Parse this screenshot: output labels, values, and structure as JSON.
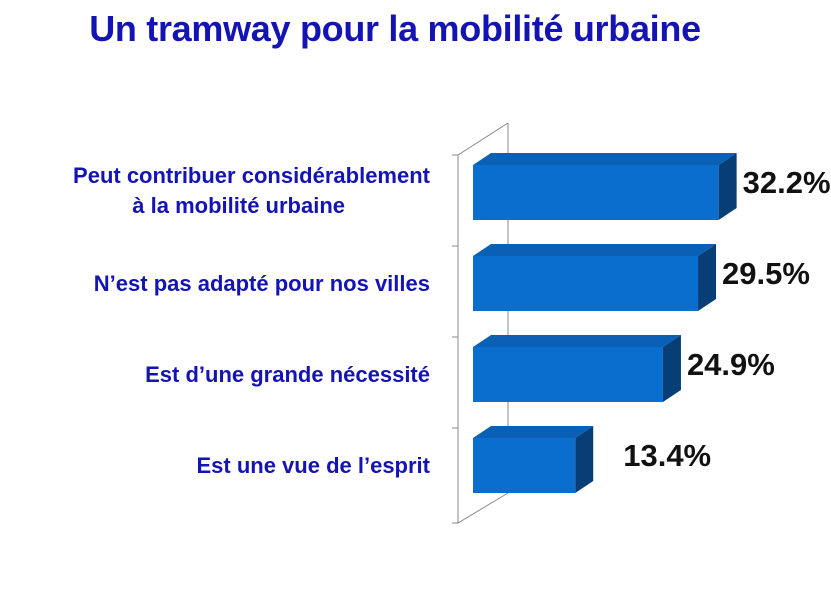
{
  "chart_data": {
    "type": "bar",
    "orientation": "horizontal",
    "style": "3d",
    "title": "Un tramway pour la mobilité urbaine",
    "categories": [
      [
        "Peut contribuer considérablement",
        "à la mobilité urbaine"
      ],
      [
        "N’est pas adapté pour nos villes"
      ],
      [
        "Est d’une grande nécessité"
      ],
      [
        "Est une vue de l’esprit"
      ]
    ],
    "values": [
      32.2,
      29.5,
      24.9,
      13.4
    ],
    "value_labels": [
      "32.2%",
      "29.5%",
      "24.9%",
      "13.4%"
    ],
    "xlim": [
      0,
      35
    ],
    "grid": false,
    "colors": {
      "front": "#0a6ecf",
      "top": "#0960b4",
      "side": "#073e75",
      "title": "#1414b4",
      "axis": "#8a8a8a"
    }
  }
}
